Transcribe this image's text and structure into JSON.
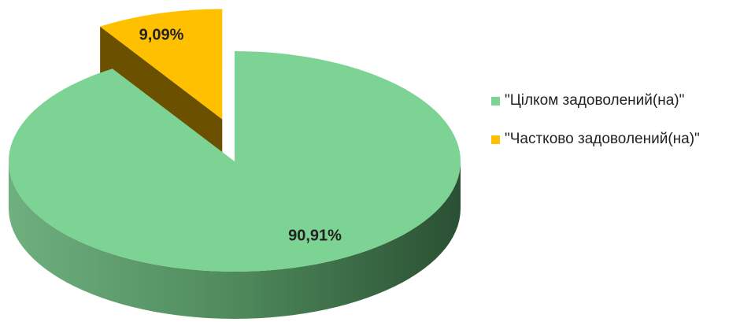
{
  "chart_data": {
    "type": "pie",
    "categories": [
      "\"Цілком задоволений(на)\"",
      "\"Частково задоволений(на)\""
    ],
    "values": [
      90.91,
      9.09
    ],
    "value_labels": [
      "90,91%",
      "9,09%"
    ],
    "colors": [
      "#7dd394",
      "#ffc000"
    ]
  }
}
